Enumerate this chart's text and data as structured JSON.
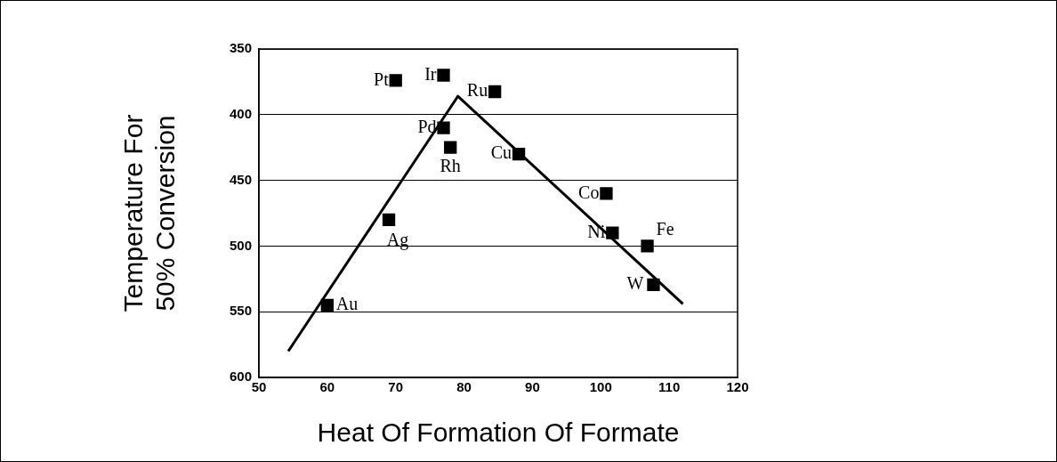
{
  "chart_data": {
    "type": "scatter",
    "xlabel": "Heat Of Formation Of Formate",
    "ylabel": "Temperature For 50% Conversion",
    "xlim": [
      50,
      120
    ],
    "xticks": [
      50,
      60,
      70,
      80,
      90,
      100,
      110,
      120
    ],
    "ylim": [
      600,
      350
    ],
    "yticks": [
      350,
      400,
      450,
      500,
      550,
      600
    ],
    "grid": "y",
    "legend": false,
    "marker": "square",
    "series": [
      {
        "type": "scatter",
        "color": "#000000",
        "x": [
          70,
          77,
          84.5,
          77,
          78,
          88,
          69,
          60,
          100.8,
          101.7,
          106.8,
          107.7
        ],
        "values": [
          374,
          370,
          382.5,
          410,
          425,
          430,
          480,
          545,
          460,
          490,
          500,
          529.5
        ]
      },
      {
        "type": "line",
        "color": "#000000",
        "x": [
          54.3,
          79.1,
          112
        ],
        "values": [
          580,
          386,
          544
        ],
        "marker": "none",
        "line_style": "solid"
      }
    ],
    "annotations": [
      {
        "text": "Pt",
        "x": 70,
        "y": 374
      },
      {
        "text": "Ir",
        "x": 77,
        "y": 370
      },
      {
        "text": "Ru",
        "x": 84.5,
        "y": 382.5
      },
      {
        "text": "Pd",
        "x": 77,
        "y": 410
      },
      {
        "text": "Rh",
        "x": 78,
        "y": 425
      },
      {
        "text": "Cu",
        "x": 88,
        "y": 430
      },
      {
        "text": "Ag",
        "x": 69,
        "y": 480
      },
      {
        "text": "Au",
        "x": 60,
        "y": 545
      },
      {
        "text": "Co",
        "x": 100.8,
        "y": 460
      },
      {
        "text": "Ni",
        "x": 101.7,
        "y": 490
      },
      {
        "text": "Fe",
        "x": 106.8,
        "y": 500
      },
      {
        "text": "W",
        "x": 107.7,
        "y": 529.5
      }
    ]
  }
}
